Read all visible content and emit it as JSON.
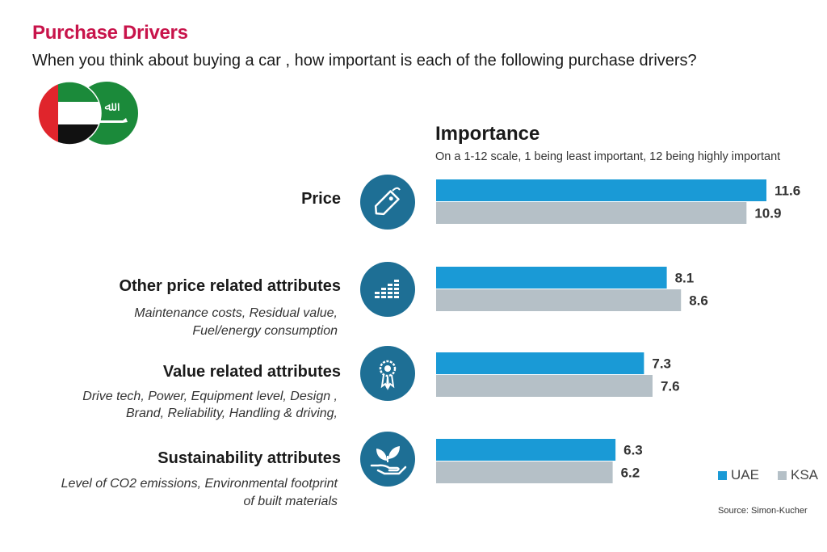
{
  "header": {
    "title": "Purchase Drivers",
    "subtitle": "When you think about buying a car , how important is each of the following purchase drivers?"
  },
  "importance": {
    "title": "Importance",
    "scale_note": "On a 1-12 scale, 1 being least important, 12 being highly important"
  },
  "categories": [
    {
      "label": "Price",
      "desc": [],
      "icon": "price-tag-icon"
    },
    {
      "label": "Other price related attributes",
      "desc": [
        "Maintenance costs, Residual value,",
        "Fuel/energy consumption"
      ],
      "icon": "bar-levels-icon"
    },
    {
      "label": "Value related attributes",
      "desc": [
        "Drive tech, Power, Equipment level, Design ,",
        "Brand, Reliability, Handling & driving,"
      ],
      "icon": "award-ribbon-icon"
    },
    {
      "label": "Sustainability attributes",
      "desc": [
        "Level of CO2 emissions, Environmental footprint",
        "of built materials"
      ],
      "icon": "hand-leaf-icon"
    }
  ],
  "legend": {
    "uae": "UAE",
    "ksa": "KSA"
  },
  "source": "Source: Simon-Kucher",
  "colors": {
    "uae": "#1a9ad6",
    "ksa": "#b5c0c7",
    "title": "#c8144b",
    "icon_bg": "#1e6f95"
  },
  "chart_data": {
    "type": "bar",
    "orientation": "horizontal",
    "title": "Importance",
    "subtitle": "On a 1-12 scale, 1 being least important, 12 being highly important",
    "categories": [
      "Price",
      "Other price related attributes",
      "Value related attributes",
      "Sustainability attributes"
    ],
    "series": [
      {
        "name": "UAE",
        "values": [
          11.6,
          8.1,
          7.3,
          6.3
        ]
      },
      {
        "name": "KSA",
        "values": [
          10.9,
          8.6,
          7.6,
          6.2
        ]
      }
    ],
    "xlim": [
      0,
      12
    ],
    "grid": false,
    "legend_position": "bottom-right"
  }
}
